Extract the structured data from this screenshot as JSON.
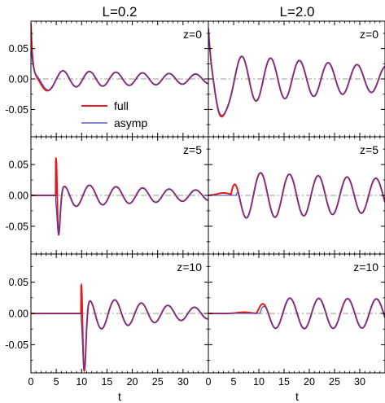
{
  "chart_data": {
    "type": "line",
    "column_titles": [
      "L=0.2",
      "L=2.0"
    ],
    "row_labels": [
      "z=0",
      "z=5",
      "z=10"
    ],
    "xlabel": "t",
    "xlim": [
      0,
      35
    ],
    "ylim": [
      -0.095,
      0.095
    ],
    "xticks": [
      0,
      5,
      10,
      15,
      20,
      25,
      30
    ],
    "yticks": [
      -0.05,
      0.0,
      0.05
    ],
    "ytick_labels": [
      "-0.05",
      "0.00",
      "0.05"
    ],
    "reference_line": {
      "y": 0,
      "style": "dash-dot",
      "color": "#999999"
    },
    "legend": {
      "position": "center-left",
      "entries": [
        {
          "name": "full",
          "color": "#e41a1c"
        },
        {
          "name": "asymp",
          "color": "#3f3fc0"
        }
      ]
    },
    "colors": {
      "full": "#e41a1c",
      "asymp": "#3f3fc0",
      "reference": "#999999"
    },
    "panels": [
      {
        "id": "L0.2-z0",
        "L": 0.2,
        "z": 0,
        "features": {
          "onset": 0,
          "omega": 1.2,
          "amp": 0.0155,
          "decay": 0.02,
          "phase": -1.3,
          "initial_spike": 0.093,
          "full_dip": -0.024,
          "full_dip_t": 2.2,
          "asymp_dip": -0.018
        }
      },
      {
        "id": "L2.0-z0",
        "L": 2.0,
        "z": 0,
        "features": {
          "onset": 0,
          "omega": 1.1,
          "amp": 0.045,
          "decay": 0.022,
          "phase": -1.0,
          "initial_spike": 0.093,
          "full_dip": -0.071,
          "full_dip_t": 2.0,
          "asymp_dip": -0.068
        }
      },
      {
        "id": "L0.2-z5",
        "L": 0.2,
        "z": 5,
        "features": {
          "onset": 5,
          "omega": 1.2,
          "amp": 0.02,
          "decay": 0.03,
          "phase": -1.6,
          "spike": 0.093,
          "spike_t": 5.0,
          "dip": -0.068,
          "dip_t": 5.4
        }
      },
      {
        "id": "L2.0-z5",
        "L": 2.0,
        "z": 5,
        "features": {
          "onset": 3,
          "omega": 1.1,
          "amp": 0.04,
          "decay": 0.012,
          "phase": -1.8,
          "precursor_peak": 0.004,
          "precursor_t": 3.0
        }
      },
      {
        "id": "L0.2-z10",
        "L": 0.2,
        "z": 10,
        "features": {
          "onset": 10,
          "omega": 1.2,
          "amp": 0.03,
          "decay": 0.05,
          "phase": -1.6,
          "spike": 0.075,
          "spike_t": 10.0,
          "dip": -0.093,
          "dip_t": 10.5
        }
      },
      {
        "id": "L2.0-z10",
        "L": 2.0,
        "z": 10,
        "features": {
          "onset": 9,
          "omega": 1.1,
          "amp": 0.025,
          "decay": 0.003,
          "phase": -1.6,
          "precursor_peak": 0.002,
          "precursor_t": 7.0
        }
      }
    ]
  }
}
